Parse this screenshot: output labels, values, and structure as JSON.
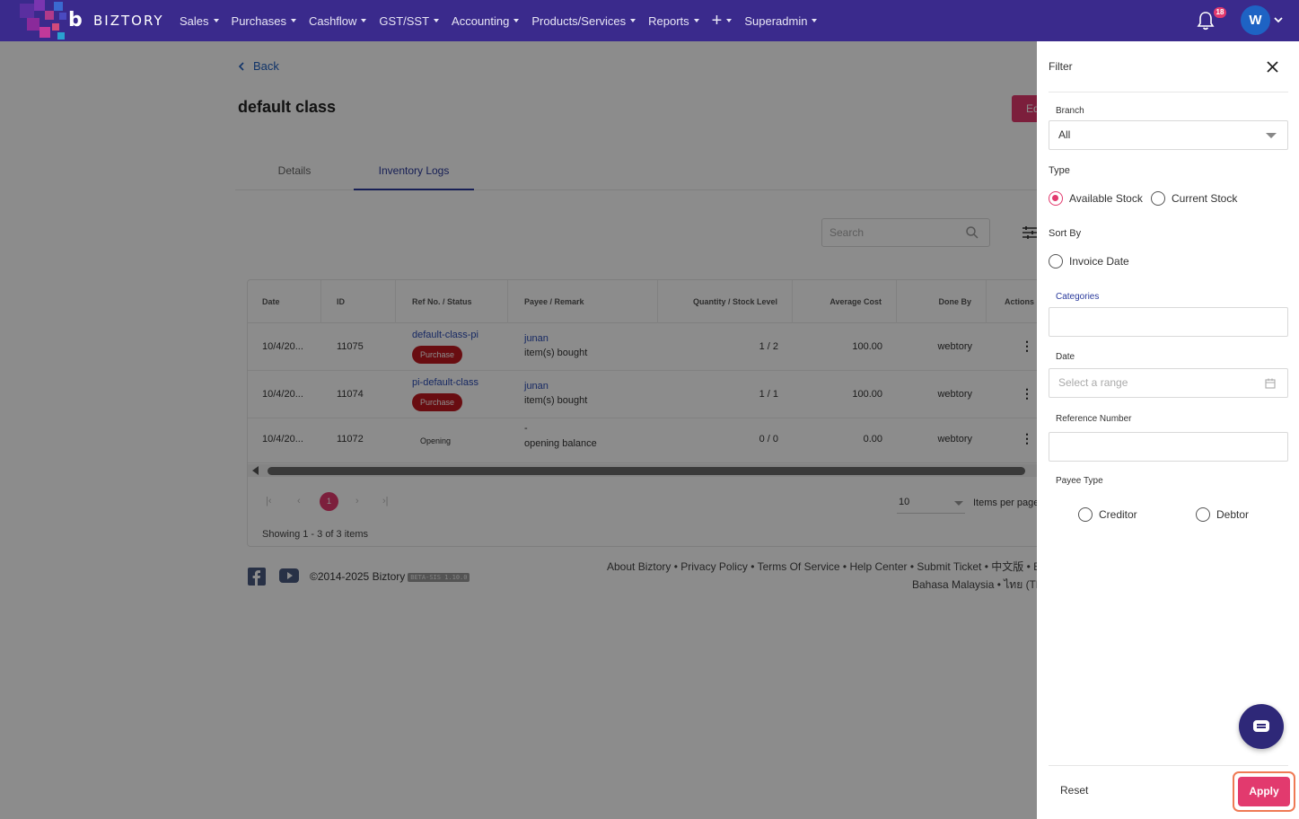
{
  "brand": {
    "name": "BIZTORY",
    "mark": "b"
  },
  "nav": {
    "items": [
      "Sales",
      "Purchases",
      "Cashflow",
      "GST/SST",
      "Accounting",
      "Products/Services",
      "Reports",
      "+",
      "Superadmin"
    ],
    "notification_count": "18",
    "avatar_initial": "W"
  },
  "page": {
    "back_label": "Back",
    "title": "default class",
    "edit_label": "Ed",
    "tabs": [
      "Details",
      "Inventory Logs"
    ],
    "active_tab": "Inventory Logs",
    "search_placeholder": "Search"
  },
  "table": {
    "columns": [
      "Date",
      "ID",
      "Ref No. / Status",
      "Payee / Remark",
      "Quantity / Stock Level",
      "Average Cost",
      "Done By",
      "Actions"
    ],
    "rows": [
      {
        "date": "10/4/20...",
        "id": "11075",
        "ref": "default-class-pi",
        "status": "Purchase",
        "payee": "junan",
        "remark": "item(s) bought",
        "qty": "1 / 2",
        "avg_cost": "100.00",
        "done_by": "webtory",
        "action": "⋮"
      },
      {
        "date": "10/4/20...",
        "id": "11074",
        "ref": "pi-default-class",
        "status": "Purchase",
        "payee": "junan",
        "remark": "item(s) bought",
        "qty": "1 / 1",
        "avg_cost": "100.00",
        "done_by": "webtory",
        "action": "⋮"
      },
      {
        "date": "10/4/20...",
        "id": "11072",
        "ref": "",
        "status": "Opening",
        "payee": "-",
        "remark": "opening balance",
        "qty": "0 / 0",
        "avg_cost": "0.00",
        "done_by": "webtory",
        "action": "⋮"
      }
    ],
    "pagination": {
      "current_page": "1",
      "per_page": "10",
      "per_page_label": "Items per page",
      "showing": "Showing 1 - 3 of 3 items"
    }
  },
  "footer": {
    "copyright": "©2014-2025 Biztory",
    "version": "BETA-SIS 1.10.0",
    "links_line1": "About Biztory • Privacy Policy • Terms Of Service • Help Center • Submit Ticket • 中文版 • Engl",
    "links_line2": "Bahasa Malaysia • ไทย (Th"
  },
  "filter": {
    "title": "Filter",
    "branch_label": "Branch",
    "branch_value": "All",
    "type_label": "Type",
    "type_options": [
      "Available Stock",
      "Current Stock"
    ],
    "type_selected": "Available Stock",
    "sort_label": "Sort By",
    "sort_options": [
      "Invoice Date"
    ],
    "categories_label": "Categories",
    "categories_value": "",
    "date_label": "Date",
    "date_placeholder": "Select a range",
    "ref_label": "Reference Number",
    "ref_value": "",
    "payee_type_label": "Payee Type",
    "payee_type_options": [
      "Creditor",
      "Debtor"
    ],
    "reset_label": "Reset",
    "apply_label": "Apply"
  },
  "colors": {
    "nav_bg": "#3a2a8c",
    "accent": "#e23a6e",
    "tag_red": "#c0191f",
    "link": "#2a4bb5"
  }
}
